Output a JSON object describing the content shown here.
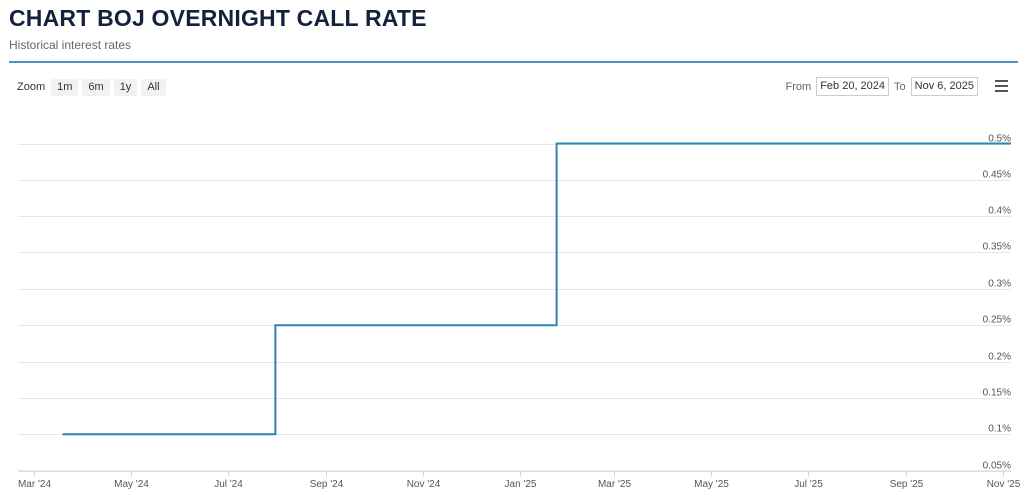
{
  "header": {
    "title": "CHART BOJ OVERNIGHT CALL RATE",
    "subtitle": "Historical interest rates"
  },
  "toolbar": {
    "zoom_label": "Zoom",
    "zoom_buttons": [
      "1m",
      "6m",
      "1y",
      "All"
    ],
    "from_label": "From",
    "from_value": "Feb 20, 2024",
    "to_label": "To",
    "to_value": "Nov 6, 2025",
    "menu_icon": "hamburger-menu-icon"
  },
  "colors": {
    "line": "#2e86b0",
    "title": "#14213d",
    "rule": "#4a90c2",
    "grid": "#e6e6e6"
  },
  "chart_data": {
    "type": "line",
    "title": "CHART BOJ OVERNIGHT CALL RATE",
    "subtitle": "Historical interest rates",
    "xlabel": "",
    "ylabel": "",
    "step": true,
    "x_tick_labels": [
      "Mar '24",
      "May '24",
      "Jul '24",
      "Sep '24",
      "Nov '24",
      "Jan '25",
      "Mar '25",
      "May '25",
      "Jul '25",
      "Sep '25",
      "Nov '25"
    ],
    "y_tick_labels": [
      "0.05%",
      "0.1%",
      "0.15%",
      "0.2%",
      "0.25%",
      "0.3%",
      "0.35%",
      "0.4%",
      "0.45%",
      "0.5%"
    ],
    "ylim": [
      0.05,
      0.5
    ],
    "xlim": [
      "2024-02-20",
      "2025-11-06"
    ],
    "grid": true,
    "y_axis_position": "right",
    "series": [
      {
        "x": [
          "2024-03-19",
          "2024-07-31",
          "2025-01-24",
          "2025-11-06"
        ],
        "values": [
          0.1,
          0.25,
          0.5,
          0.5
        ]
      }
    ]
  }
}
